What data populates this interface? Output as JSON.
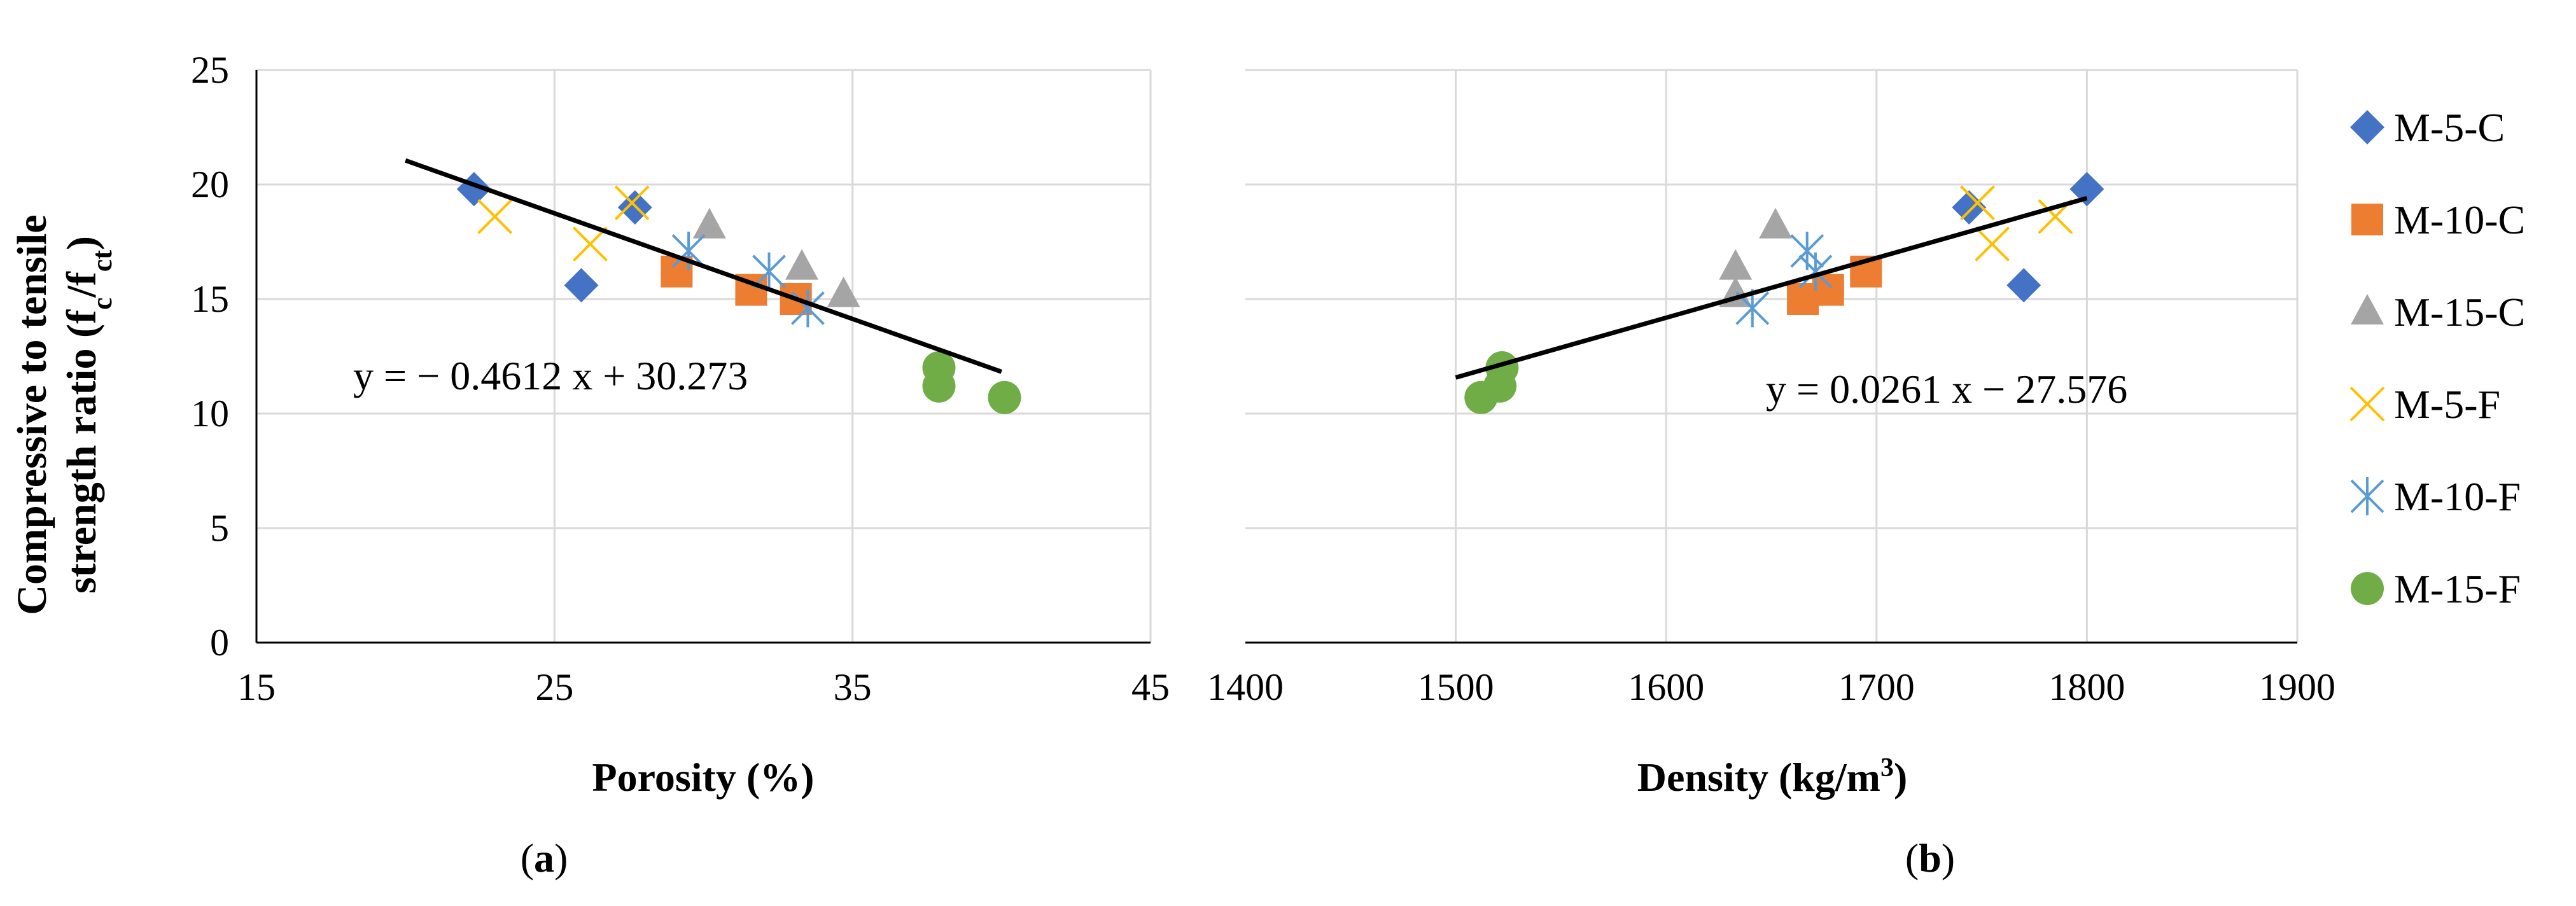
{
  "figure": {
    "ylabel_line1": "Compressive to tensile",
    "ylabel_line2_prefix": "strength ratio (f",
    "ylabel_sub1": "c",
    "ylabel_mid": "/f",
    "ylabel_sub2": "ct",
    "ylabel_end": ")"
  },
  "colors": {
    "M-5-C": "#4472C4",
    "M-10-C": "#ED7D31",
    "M-15-C": "#A5A5A5",
    "M-5-F": "#FFC000",
    "M-10-F": "#5B9BD5",
    "M-15-F": "#70AD47",
    "trendline": "#000000",
    "grid": "#D9D9D9"
  },
  "legend": {
    "placement": "right",
    "items": [
      {
        "name": "M-5-C",
        "marker": "diamond"
      },
      {
        "name": "M-10-C",
        "marker": "square"
      },
      {
        "name": "M-15-C",
        "marker": "triangle"
      },
      {
        "name": "M-5-F",
        "marker": "x"
      },
      {
        "name": "M-10-F",
        "marker": "star"
      },
      {
        "name": "M-15-F",
        "marker": "circle"
      }
    ]
  },
  "chart_data": [
    {
      "type": "scatter",
      "panel_label": "(a)",
      "panel_letter": "a",
      "xlabel": "Porosity (%)",
      "ylabel": "Compressive to tensile strength ratio (fc/fct)",
      "xlim": [
        15,
        45
      ],
      "ylim": [
        0,
        25
      ],
      "xticks": [
        15,
        25,
        35,
        45
      ],
      "yticks": [
        0,
        5,
        10,
        15,
        20,
        25
      ],
      "grid": true,
      "series": [
        {
          "name": "M-5-C",
          "points": [
            [
              22.3,
              19.8
            ],
            [
              25.9,
              15.6
            ],
            [
              27.7,
              19.0
            ]
          ]
        },
        {
          "name": "M-10-C",
          "points": [
            [
              29.1,
              16.2
            ],
            [
              31.6,
              15.4
            ],
            [
              33.1,
              15.0
            ]
          ]
        },
        {
          "name": "M-15-C",
          "points": [
            [
              30.2,
              18.2
            ],
            [
              33.3,
              16.4
            ],
            [
              34.7,
              15.2
            ]
          ]
        },
        {
          "name": "M-5-F",
          "points": [
            [
              23.0,
              18.6
            ],
            [
              26.2,
              17.4
            ],
            [
              27.6,
              19.2
            ]
          ]
        },
        {
          "name": "M-10-F",
          "points": [
            [
              29.5,
              17.1
            ],
            [
              32.2,
              16.2
            ],
            [
              33.5,
              14.6
            ]
          ]
        },
        {
          "name": "M-15-F",
          "points": [
            [
              37.9,
              12.0
            ],
            [
              37.9,
              11.2
            ],
            [
              40.1,
              10.7
            ]
          ]
        }
      ],
      "trendline": {
        "equation": "y = − 0.4612 x + 30.273",
        "slope": -0.4612,
        "intercept": 30.273,
        "x_range": [
          20,
          40
        ]
      }
    },
    {
      "type": "scatter",
      "panel_label": "(b)",
      "panel_letter": "b",
      "xlabel": "Density (kg/m³)",
      "xlabel_main": "Density (kg/m",
      "xlabel_sup": "3",
      "xlabel_end": ")",
      "xlim": [
        1400,
        1900
      ],
      "ylim": [
        0,
        25
      ],
      "xticks": [
        1400,
        1500,
        1600,
        1700,
        1800,
        1900
      ],
      "grid": true,
      "series": [
        {
          "name": "M-5-C",
          "points": [
            [
              1744,
              19.0
            ],
            [
              1770,
              15.6
            ],
            [
              1800,
              19.8
            ]
          ]
        },
        {
          "name": "M-10-C",
          "points": [
            [
              1665,
              15.0
            ],
            [
              1677,
              15.4
            ],
            [
              1695,
              16.2
            ]
          ]
        },
        {
          "name": "M-15-C",
          "points": [
            [
              1633,
              15.2
            ],
            [
              1633,
              16.4
            ],
            [
              1652,
              18.2
            ]
          ]
        },
        {
          "name": "M-5-F",
          "points": [
            [
              1748,
              19.2
            ],
            [
              1755,
              17.4
            ],
            [
              1785,
              18.6
            ]
          ]
        },
        {
          "name": "M-10-F",
          "points": [
            [
              1641,
              14.6
            ],
            [
              1667,
              17.1
            ],
            [
              1671,
              16.2
            ]
          ]
        },
        {
          "name": "M-15-F",
          "points": [
            [
              1512,
              10.7
            ],
            [
              1521,
              11.2
            ],
            [
              1522,
              12.0
            ]
          ]
        }
      ],
      "trendline": {
        "equation": "y = 0.0261 x − 27.576",
        "slope": 0.0261,
        "intercept": -27.576,
        "x_range": [
          1500,
          1800
        ]
      }
    }
  ]
}
